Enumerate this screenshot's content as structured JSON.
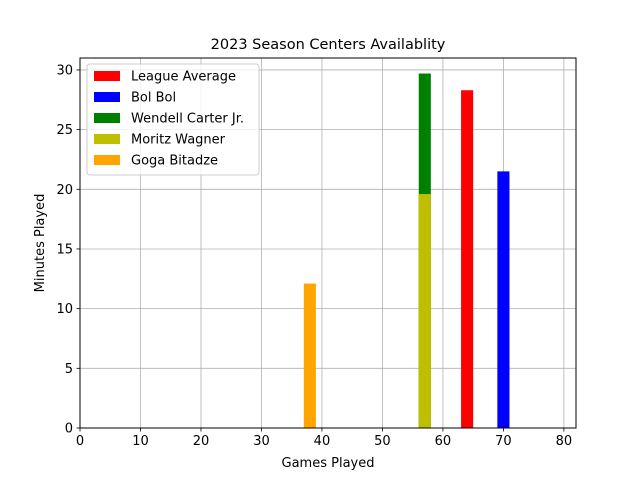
{
  "chart_data": {
    "type": "bar",
    "title": "2023 Season Centers Availablity",
    "xlabel": "Games Played",
    "ylabel": "Minutes Played",
    "xlim": [
      0,
      82
    ],
    "ylim": [
      0,
      31
    ],
    "xticks": [
      0,
      10,
      20,
      30,
      40,
      50,
      60,
      70,
      80
    ],
    "yticks": [
      0,
      5,
      10,
      15,
      20,
      25,
      30
    ],
    "grid": true,
    "legend_position": "top-left",
    "bar_width": 2,
    "series": [
      {
        "name": "League Average",
        "color": "#ff0000",
        "x": 64,
        "y": 28.3
      },
      {
        "name": "Bol Bol",
        "color": "#0000ff",
        "x": 70,
        "y": 21.5
      },
      {
        "name": "Wendell Carter Jr.",
        "color": "#008000",
        "x": 57,
        "y": 29.7
      },
      {
        "name": "Moritz Wagner",
        "color": "#bfbf00",
        "x": 57,
        "y": 19.6
      },
      {
        "name": "Goga Bitadze",
        "color": "#ffa500",
        "x": 38,
        "y": 12.1
      }
    ]
  }
}
